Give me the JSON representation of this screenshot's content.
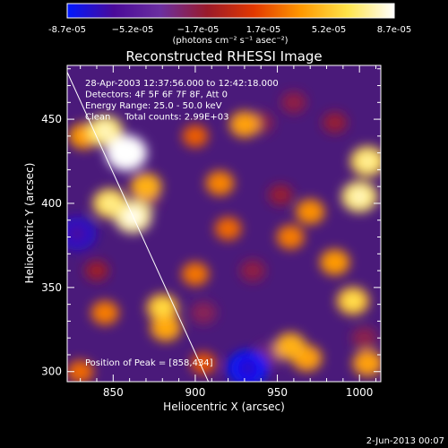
{
  "chart_data": {
    "type": "heatmap",
    "title": "Reconstructed RHESSI Image",
    "xlabel": "Heliocentric X (arcsec)",
    "ylabel": "Heliocentric Y (arcsec)",
    "xlim": [
      822,
      1013
    ],
    "ylim": [
      294,
      482
    ],
    "x_ticks": [
      850,
      900,
      950,
      1000
    ],
    "y_ticks": [
      300,
      350,
      400,
      450
    ],
    "colorbar": {
      "range": [
        -8.7e-05,
        8.7e-05
      ],
      "tick_labels": [
        "-8.7e-05",
        "−5.2e-05",
        "−1.7e-05",
        "1.7e-05",
        "5.2e-05",
        "8.7e-05"
      ],
      "unit_label": "(photons cm⁻² s⁻¹ asec⁻²)",
      "colormap": [
        "#0018ff",
        "#4a0a99",
        "#6b2fa0",
        "#9a1a2a",
        "#e23800",
        "#ff9800",
        "#ffe44a",
        "#ffffff"
      ]
    },
    "annotations": [
      "28-Apr-2003 12:37:56.000 to 12:42:18.000",
      "Detectors: 4F 5F 6F 7F 8F, Att 0",
      "Energy Range: 25.0 - 50.0 keV",
      "Clean     Total counts: 2.99E+03"
    ],
    "peak_label": "Position of Peak = [858,434]",
    "peak": [
      858,
      434
    ],
    "limb_line": [
      [
        822,
        478
      ],
      [
        908,
        294
      ]
    ],
    "sources": [
      {
        "x": 845,
        "y": 443,
        "value": 6.5e-05
      },
      {
        "x": 858,
        "y": 430,
        "value": 8.7e-05
      },
      {
        "x": 862,
        "y": 392,
        "value": 7.2e-05
      },
      {
        "x": 848,
        "y": 400,
        "value": 5.8e-05
      },
      {
        "x": 870,
        "y": 410,
        "value": 4.5e-05
      },
      {
        "x": 832,
        "y": 440,
        "value": 3.8e-05
      },
      {
        "x": 900,
        "y": 440,
        "value": 2.2e-05
      },
      {
        "x": 930,
        "y": 447,
        "value": 4e-05
      },
      {
        "x": 1005,
        "y": 425,
        "value": 6e-05
      },
      {
        "x": 1000,
        "y": 404,
        "value": 6.5e-05
      },
      {
        "x": 970,
        "y": 395,
        "value": 3.5e-05
      },
      {
        "x": 958,
        "y": 380,
        "value": 3e-05
      },
      {
        "x": 915,
        "y": 412,
        "value": 3.2e-05
      },
      {
        "x": 920,
        "y": 385,
        "value": 2.5e-05
      },
      {
        "x": 985,
        "y": 365,
        "value": 3.8e-05
      },
      {
        "x": 996,
        "y": 342,
        "value": 5e-05
      },
      {
        "x": 845,
        "y": 335,
        "value": 3e-05
      },
      {
        "x": 880,
        "y": 338,
        "value": 4.8e-05
      },
      {
        "x": 882,
        "y": 326,
        "value": 4.2e-05
      },
      {
        "x": 900,
        "y": 358,
        "value": 2.8e-05
      },
      {
        "x": 958,
        "y": 315,
        "value": 4.5e-05
      },
      {
        "x": 968,
        "y": 308,
        "value": 4e-05
      },
      {
        "x": 1005,
        "y": 305,
        "value": 4e-05
      },
      {
        "x": 830,
        "y": 300,
        "value": 2.5e-05
      },
      {
        "x": 905,
        "y": 305,
        "value": 2e-05
      },
      {
        "x": 828,
        "y": 382,
        "value": -7.5e-05
      },
      {
        "x": 870,
        "y": 402,
        "value": -2.5e-05
      },
      {
        "x": 932,
        "y": 302,
        "value": -8.7e-05
      },
      {
        "x": 945,
        "y": 310,
        "value": -3e-05
      },
      {
        "x": 940,
        "y": 448,
        "value": -2e-05
      },
      {
        "x": 960,
        "y": 460,
        "value": -1.8e-05
      },
      {
        "x": 985,
        "y": 448,
        "value": -1.5e-05
      },
      {
        "x": 905,
        "y": 335,
        "value": -2.2e-05
      },
      {
        "x": 935,
        "y": 360,
        "value": -1.8e-05
      },
      {
        "x": 952,
        "y": 405,
        "value": -1.5e-05
      },
      {
        "x": 1003,
        "y": 320,
        "value": -2e-05
      },
      {
        "x": 840,
        "y": 360,
        "value": -1.2e-05
      }
    ]
  },
  "footer_date": "2-Jun-2013 00:07"
}
